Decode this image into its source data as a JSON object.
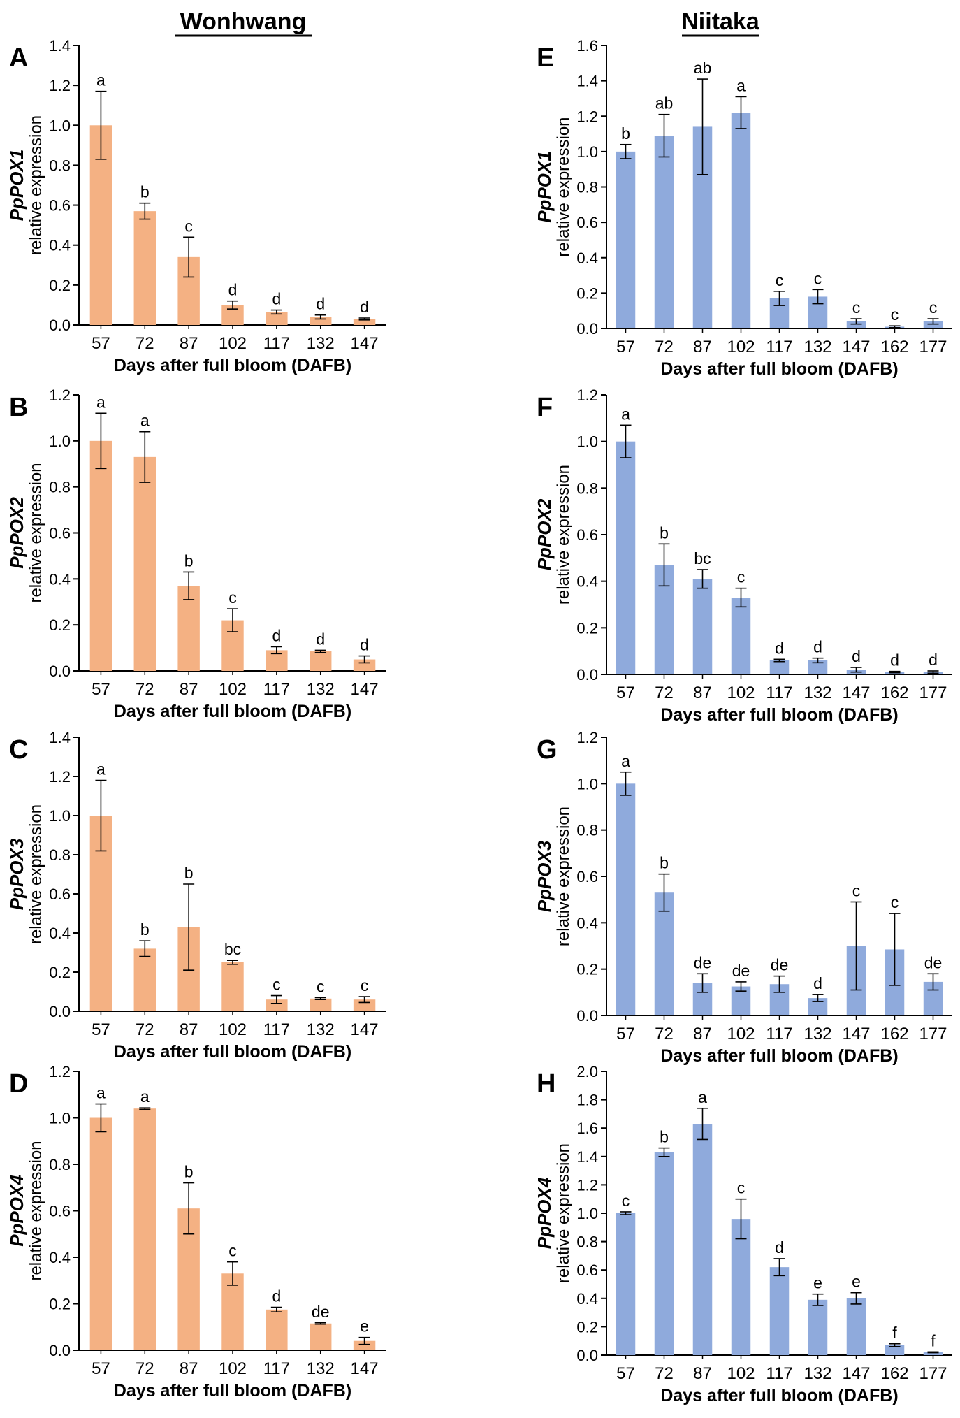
{
  "figure": {
    "left_title": "Wonhwang",
    "right_title": "Niitaka",
    "colors": {
      "left_bar": "#f4b183",
      "right_bar": "#8faadc",
      "axis": "#000000",
      "error": "#000000"
    }
  },
  "chart_data": [
    {
      "panel": "A",
      "column": "left",
      "type": "bar",
      "ylabel_gene": "PpPOX1",
      "ylabel_rest": "relative expression",
      "xlabel": "Days after full bloom (DAFB)",
      "categories": [
        "57",
        "72",
        "87",
        "102",
        "117",
        "132",
        "147"
      ],
      "values": [
        1.0,
        0.57,
        0.34,
        0.1,
        0.065,
        0.04,
        0.03
      ],
      "errors": [
        0.17,
        0.04,
        0.1,
        0.02,
        0.01,
        0.01,
        0.005
      ],
      "letters": [
        "a",
        "b",
        "c",
        "d",
        "d",
        "d",
        "d"
      ],
      "ylim": [
        0,
        1.4
      ],
      "yticks": [
        "0.0",
        "0.2",
        "0.4",
        "0.6",
        "0.8",
        "1.0",
        "1.2",
        "1.4"
      ]
    },
    {
      "panel": "B",
      "column": "left",
      "type": "bar",
      "ylabel_gene": "PpPOX2",
      "ylabel_rest": "relative expression",
      "xlabel": "Days after full bloom (DAFB)",
      "categories": [
        "57",
        "72",
        "87",
        "102",
        "117",
        "132",
        "147"
      ],
      "values": [
        1.0,
        0.93,
        0.37,
        0.22,
        0.09,
        0.085,
        0.05
      ],
      "errors": [
        0.12,
        0.11,
        0.06,
        0.05,
        0.015,
        0.005,
        0.015
      ],
      "letters": [
        "a",
        "a",
        "b",
        "c",
        "d",
        "d",
        "d"
      ],
      "ylim": [
        0,
        1.2
      ],
      "yticks": [
        "0.0",
        "0.2",
        "0.4",
        "0.6",
        "0.8",
        "1.0",
        "1.2"
      ]
    },
    {
      "panel": "C",
      "column": "left",
      "type": "bar",
      "ylabel_gene": "PpPOX3",
      "ylabel_rest": "relative expression",
      "xlabel": "Days after full bloom (DAFB)",
      "categories": [
        "57",
        "72",
        "87",
        "102",
        "117",
        "132",
        "147"
      ],
      "values": [
        1.0,
        0.32,
        0.43,
        0.25,
        0.06,
        0.065,
        0.06
      ],
      "errors": [
        0.18,
        0.04,
        0.22,
        0.01,
        0.02,
        0.005,
        0.015
      ],
      "letters": [
        "a",
        "b",
        "b",
        "bc",
        "c",
        "c",
        "c"
      ],
      "ylim": [
        0,
        1.4
      ],
      "yticks": [
        "0.0",
        "0.2",
        "0.4",
        "0.6",
        "0.8",
        "1.0",
        "1.2",
        "1.4"
      ]
    },
    {
      "panel": "D",
      "column": "left",
      "type": "bar",
      "ylabel_gene": "PpPOX4",
      "ylabel_rest": "relative expression",
      "xlabel": "Days after full bloom (DAFB)",
      "categories": [
        "57",
        "72",
        "87",
        "102",
        "117",
        "132",
        "147"
      ],
      "values": [
        1.0,
        1.04,
        0.61,
        0.33,
        0.175,
        0.115,
        0.04
      ],
      "errors": [
        0.06,
        0.003,
        0.11,
        0.05,
        0.01,
        0.003,
        0.015
      ],
      "letters": [
        "a",
        "a",
        "b",
        "c",
        "d",
        "de",
        "e"
      ],
      "ylim": [
        0,
        1.2
      ],
      "yticks": [
        "0.0",
        "0.2",
        "0.4",
        "0.6",
        "0.8",
        "1.0",
        "1.2"
      ]
    },
    {
      "panel": "E",
      "column": "right",
      "type": "bar",
      "ylabel_gene": "PpPOX1",
      "ylabel_rest": "relative expression",
      "xlabel": "Days after full bloom (DAFB)",
      "categories": [
        "57",
        "72",
        "87",
        "102",
        "117",
        "132",
        "147",
        "162",
        "177"
      ],
      "values": [
        1.0,
        1.09,
        1.14,
        1.22,
        0.17,
        0.18,
        0.04,
        0.01,
        0.04
      ],
      "errors": [
        0.04,
        0.12,
        0.27,
        0.09,
        0.04,
        0.04,
        0.015,
        0.005,
        0.015
      ],
      "letters": [
        "b",
        "ab",
        "ab",
        "a",
        "c",
        "c",
        "c",
        "c",
        "c"
      ],
      "ylim": [
        0,
        1.6
      ],
      "yticks": [
        "0.0",
        "0.2",
        "0.4",
        "0.6",
        "0.8",
        "1.0",
        "1.2",
        "1.4",
        "1.6"
      ]
    },
    {
      "panel": "F",
      "column": "right",
      "type": "bar",
      "ylabel_gene": "PpPOX2",
      "ylabel_rest": "relative expression",
      "xlabel": "Days after full bloom (DAFB)",
      "categories": [
        "57",
        "72",
        "87",
        "102",
        "117",
        "132",
        "147",
        "162",
        "177"
      ],
      "values": [
        1.0,
        0.47,
        0.41,
        0.33,
        0.06,
        0.06,
        0.02,
        0.01,
        0.01
      ],
      "errors": [
        0.07,
        0.09,
        0.04,
        0.04,
        0.005,
        0.01,
        0.01,
        0.003,
        0.005
      ],
      "letters": [
        "a",
        "b",
        "bc",
        "c",
        "d",
        "d",
        "d",
        "d",
        "d"
      ],
      "ylim": [
        0,
        1.2
      ],
      "yticks": [
        "0.0",
        "0.2",
        "0.4",
        "0.6",
        "0.8",
        "1.0",
        "1.2"
      ]
    },
    {
      "panel": "G",
      "column": "right",
      "type": "bar",
      "ylabel_gene": "PpPOX3",
      "ylabel_rest": "relative expression",
      "xlabel": "Days after full bloom (DAFB)",
      "categories": [
        "57",
        "72",
        "87",
        "102",
        "117",
        "132",
        "147",
        "162",
        "177"
      ],
      "values": [
        1.0,
        0.53,
        0.14,
        0.125,
        0.135,
        0.075,
        0.3,
        0.285,
        0.145
      ],
      "errors": [
        0.05,
        0.08,
        0.04,
        0.02,
        0.035,
        0.015,
        0.19,
        0.155,
        0.035
      ],
      "letters": [
        "a",
        "b",
        "de",
        "de",
        "de",
        "d",
        "c",
        "c",
        "de"
      ],
      "ylim": [
        0,
        1.2
      ],
      "yticks": [
        "0.0",
        "0.2",
        "0.4",
        "0.6",
        "0.8",
        "1.0",
        "1.2"
      ]
    },
    {
      "panel": "H",
      "column": "right",
      "type": "bar",
      "ylabel_gene": "PpPOX4",
      "ylabel_rest": "relative expression",
      "xlabel": "Days after full bloom (DAFB)",
      "categories": [
        "57",
        "72",
        "87",
        "102",
        "117",
        "132",
        "147",
        "162",
        "177"
      ],
      "values": [
        1.0,
        1.43,
        1.63,
        0.96,
        0.62,
        0.39,
        0.4,
        0.07,
        0.02
      ],
      "errors": [
        0.01,
        0.03,
        0.11,
        0.14,
        0.06,
        0.04,
        0.04,
        0.01,
        0.003
      ],
      "letters": [
        "c",
        "b",
        "a",
        "c",
        "d",
        "e",
        "e",
        "f",
        "f"
      ],
      "ylim": [
        0,
        2.0
      ],
      "yticks": [
        "0.0",
        "0.2",
        "0.4",
        "0.6",
        "0.8",
        "1.0",
        "1.2",
        "1.4",
        "1.6",
        "1.8",
        "2.0"
      ]
    }
  ]
}
